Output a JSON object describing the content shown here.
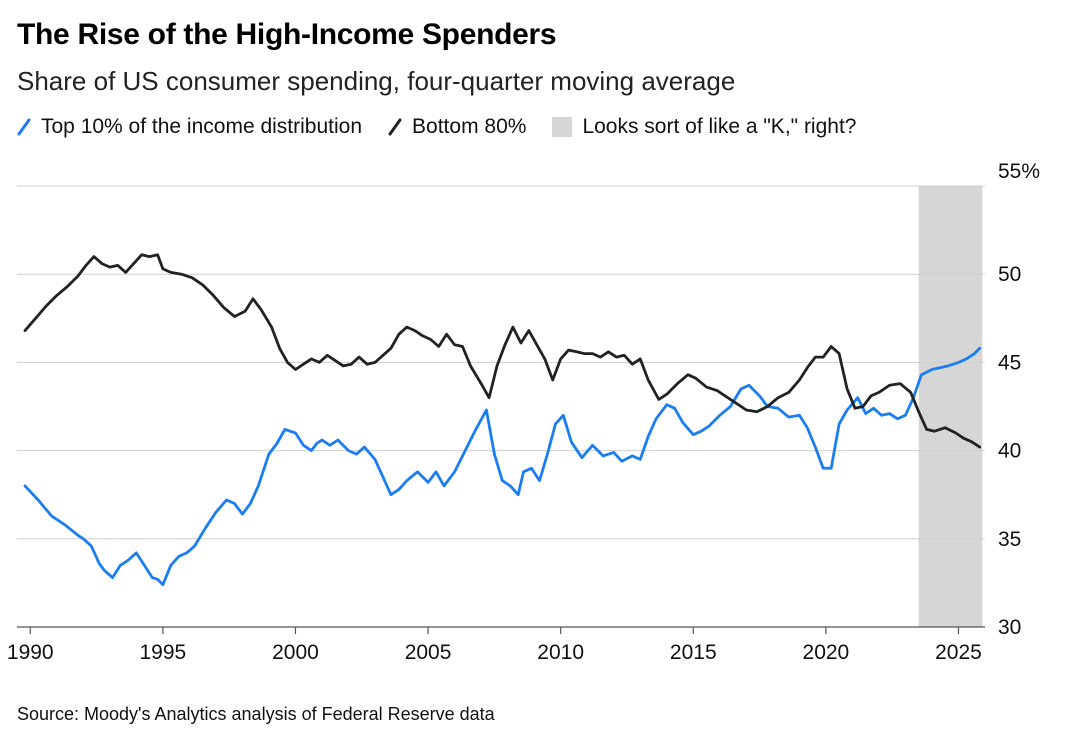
{
  "title": "The Rise of the High-Income Spenders",
  "subtitle": "Share of US consumer spending, four-quarter moving average",
  "source": "Source: Moody's Analytics analysis of Federal Reserve data",
  "legend": [
    {
      "label": "Top 10% of the income distribution",
      "kind": "line",
      "color": "#1a7ef0"
    },
    {
      "label": "Bottom 80%",
      "kind": "line",
      "color": "#222222"
    },
    {
      "label": "Looks sort of like a \"K,\" right?",
      "kind": "box",
      "color": "#d6d6d6"
    }
  ],
  "chart_data": {
    "type": "line",
    "title": "The Rise of the High-Income Spenders",
    "subtitle": "Share of US consumer spending, four-quarter moving average",
    "xlabel": "",
    "ylabel": "",
    "ylim": [
      30,
      55
    ],
    "xlim": [
      1989.5,
      2026.0
    ],
    "y_ticks": [
      30,
      35,
      40,
      45,
      50,
      55
    ],
    "y_tick_labels": [
      "30",
      "35",
      "40",
      "45",
      "50",
      "55%"
    ],
    "x_ticks": [
      1990,
      1995,
      2000,
      2005,
      2010,
      2015,
      2020,
      2025
    ],
    "x_tick_labels": [
      "1990",
      "1995",
      "2000",
      "2005",
      "2010",
      "2015",
      "2020",
      "2025"
    ],
    "grid": true,
    "shaded_region": {
      "x_start": 2023.5,
      "x_end": 2025.9,
      "label": "Looks sort of like a \"K,\" right?"
    },
    "series": [
      {
        "name": "Top 10% of the income distribution",
        "color": "#1a7ef0",
        "x": [
          1989.8,
          1990.3,
          1990.8,
          1991.3,
          1991.8,
          1992.0,
          1992.3,
          1992.6,
          1992.8,
          1993.1,
          1993.4,
          1993.7,
          1994.0,
          1994.3,
          1994.6,
          1994.8,
          1995.0,
          1995.3,
          1995.6,
          1995.9,
          1996.2,
          1996.6,
          1997.0,
          1997.4,
          1997.7,
          1998.0,
          1998.3,
          1998.6,
          1999.0,
          1999.3,
          1999.6,
          2000.0,
          2000.3,
          2000.6,
          2000.8,
          2001.0,
          2001.3,
          2001.6,
          2002.0,
          2002.3,
          2002.6,
          2003.0,
          2003.3,
          2003.6,
          2003.9,
          2004.2,
          2004.6,
          2005.0,
          2005.3,
          2005.6,
          2006.0,
          2006.4,
          2006.8,
          2007.2,
          2007.5,
          2007.8,
          2008.1,
          2008.4,
          2008.6,
          2008.9,
          2009.2,
          2009.5,
          2009.8,
          2010.1,
          2010.4,
          2010.8,
          2011.2,
          2011.6,
          2012.0,
          2012.3,
          2012.7,
          2013.0,
          2013.3,
          2013.6,
          2014.0,
          2014.3,
          2014.6,
          2015.0,
          2015.3,
          2015.6,
          2016.0,
          2016.4,
          2016.8,
          2017.1,
          2017.5,
          2017.8,
          2018.2,
          2018.6,
          2019.0,
          2019.3,
          2019.6,
          2019.9,
          2020.2,
          2020.5,
          2020.8,
          2021.2,
          2021.5,
          2021.8,
          2022.1,
          2022.4,
          2022.7,
          2023.0,
          2023.3,
          2023.6,
          2024.0,
          2024.3,
          2024.6,
          2025.0,
          2025.3,
          2025.6,
          2025.8
        ],
        "y": [
          38.0,
          37.2,
          36.3,
          35.8,
          35.2,
          35.0,
          34.6,
          33.6,
          33.2,
          32.8,
          33.5,
          33.8,
          34.2,
          33.5,
          32.8,
          32.7,
          32.4,
          33.5,
          34.0,
          34.2,
          34.6,
          35.6,
          36.5,
          37.2,
          37.0,
          36.4,
          37.0,
          38.0,
          39.8,
          40.4,
          41.2,
          41.0,
          40.3,
          40.0,
          40.4,
          40.6,
          40.3,
          40.6,
          40.0,
          39.8,
          40.2,
          39.5,
          38.5,
          37.5,
          37.8,
          38.3,
          38.8,
          38.2,
          38.8,
          38.0,
          38.8,
          40.0,
          41.2,
          42.3,
          39.8,
          38.3,
          38.0,
          37.5,
          38.8,
          39.0,
          38.3,
          39.8,
          41.5,
          42.0,
          40.5,
          39.6,
          40.3,
          39.7,
          39.9,
          39.4,
          39.7,
          39.5,
          40.8,
          41.8,
          42.6,
          42.4,
          41.6,
          40.9,
          41.1,
          41.4,
          42.0,
          42.5,
          43.5,
          43.7,
          43.1,
          42.5,
          42.4,
          41.9,
          42.0,
          41.3,
          40.2,
          39.0,
          39.0,
          41.5,
          42.3,
          43.0,
          42.1,
          42.4,
          42.0,
          42.1,
          41.8,
          42.0,
          43.0,
          44.3,
          44.6,
          44.7,
          44.8,
          45.0,
          45.2,
          45.5,
          45.8
        ]
      },
      {
        "name": "Bottom 80%",
        "color": "#222222",
        "x": [
          1989.8,
          1990.2,
          1990.6,
          1991.0,
          1991.4,
          1991.8,
          1992.1,
          1992.4,
          1992.7,
          1993.0,
          1993.3,
          1993.6,
          1993.9,
          1994.2,
          1994.5,
          1994.8,
          1995.0,
          1995.3,
          1995.7,
          1996.1,
          1996.5,
          1996.9,
          1997.3,
          1997.7,
          1998.1,
          1998.4,
          1998.7,
          1999.1,
          1999.4,
          1999.7,
          2000.0,
          2000.3,
          2000.6,
          2000.9,
          2001.2,
          2001.5,
          2001.8,
          2002.1,
          2002.4,
          2002.7,
          2003.0,
          2003.3,
          2003.6,
          2003.9,
          2004.2,
          2004.5,
          2004.8,
          2005.1,
          2005.4,
          2005.7,
          2006.0,
          2006.3,
          2006.6,
          2007.0,
          2007.3,
          2007.6,
          2007.9,
          2008.2,
          2008.5,
          2008.8,
          2009.1,
          2009.4,
          2009.7,
          2010.0,
          2010.3,
          2010.6,
          2010.9,
          2011.2,
          2011.5,
          2011.8,
          2012.1,
          2012.4,
          2012.7,
          2013.0,
          2013.3,
          2013.7,
          2014.0,
          2014.4,
          2014.8,
          2015.1,
          2015.5,
          2015.9,
          2016.3,
          2016.7,
          2017.0,
          2017.4,
          2017.8,
          2018.2,
          2018.6,
          2019.0,
          2019.3,
          2019.6,
          2019.9,
          2020.2,
          2020.5,
          2020.8,
          2021.1,
          2021.4,
          2021.7,
          2022.0,
          2022.4,
          2022.8,
          2023.2,
          2023.5,
          2023.8,
          2024.1,
          2024.5,
          2024.9,
          2025.2,
          2025.5,
          2025.8
        ],
        "y": [
          46.8,
          47.5,
          48.2,
          48.8,
          49.3,
          49.9,
          50.5,
          51.0,
          50.6,
          50.4,
          50.5,
          50.1,
          50.6,
          51.1,
          51.0,
          51.1,
          50.3,
          50.1,
          50.0,
          49.8,
          49.4,
          48.8,
          48.1,
          47.6,
          47.9,
          48.6,
          48.0,
          47.0,
          45.8,
          45.0,
          44.6,
          44.9,
          45.2,
          45.0,
          45.4,
          45.1,
          44.8,
          44.9,
          45.3,
          44.9,
          45.0,
          45.4,
          45.8,
          46.6,
          47.0,
          46.8,
          46.5,
          46.3,
          45.9,
          46.6,
          46.0,
          45.9,
          44.8,
          43.8,
          43.0,
          44.8,
          46.0,
          47.0,
          46.1,
          46.8,
          46.0,
          45.2,
          44.0,
          45.2,
          45.7,
          45.6,
          45.5,
          45.5,
          45.3,
          45.6,
          45.3,
          45.4,
          44.9,
          45.2,
          44.0,
          42.9,
          43.2,
          43.8,
          44.3,
          44.1,
          43.6,
          43.4,
          43.0,
          42.6,
          42.3,
          42.2,
          42.5,
          43.0,
          43.3,
          44.0,
          44.7,
          45.3,
          45.3,
          45.9,
          45.5,
          43.5,
          42.4,
          42.5,
          43.1,
          43.3,
          43.7,
          43.8,
          43.3,
          42.2,
          41.2,
          41.1,
          41.3,
          41.0,
          40.7,
          40.5,
          40.2
        ]
      }
    ]
  }
}
